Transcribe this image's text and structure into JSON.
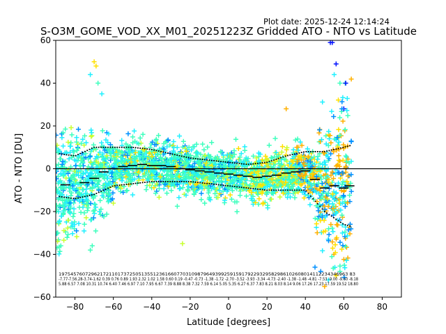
{
  "chart_data": {
    "type": "scatter",
    "plot_date": "Plot date: 2025-12-24 12:14:24",
    "title": "S-O3M_GOME_VOD_XX_M01_20251223Z Gridded ATO - NTO vs Latitude",
    "xlabel": "Latitude [degrees]",
    "ylabel": "ATO - NTO [DU]",
    "xlim": [
      -90,
      90
    ],
    "ylim": [
      -60,
      60
    ],
    "xticks": [
      -80,
      -60,
      -40,
      -20,
      0,
      20,
      40,
      60,
      80
    ],
    "yticks": [
      -60,
      -40,
      -20,
      0,
      20,
      40,
      60
    ],
    "zero_line": 0,
    "marker": "+",
    "colors": {
      "cyan_green": "#3dffbd",
      "aquamarine": "#20f0ff",
      "blue": "#0090ff",
      "yellow_green": "#c8ff30",
      "yellow": "#ffe000",
      "orange": "#ffb000",
      "dark_blue": "#0010ff",
      "mean_line": "#000000",
      "zero_line": "#000000"
    },
    "mean_by_band": [
      {
        "lat": -85,
        "mean": -7.5
      },
      {
        "lat": -75,
        "mean": -6.5
      },
      {
        "lat": -70,
        "mean": -4.5
      },
      {
        "lat": -65,
        "mean": -1.5
      },
      {
        "lat": -60,
        "mean": 0.0
      },
      {
        "lat": -55,
        "mean": 1.0
      },
      {
        "lat": -50,
        "mean": 1.5
      },
      {
        "lat": -45,
        "mean": 2.0
      },
      {
        "lat": -40,
        "mean": 1.5
      },
      {
        "lat": -35,
        "mean": 1.5
      },
      {
        "lat": -30,
        "mean": 1.0
      },
      {
        "lat": -25,
        "mean": 0.0
      },
      {
        "lat": -20,
        "mean": -0.5
      },
      {
        "lat": -15,
        "mean": -1.0
      },
      {
        "lat": -10,
        "mean": -1.5
      },
      {
        "lat": -5,
        "mean": -2.0
      },
      {
        "lat": 0,
        "mean": -2.5
      },
      {
        "lat": 5,
        "mean": -3.0
      },
      {
        "lat": 10,
        "mean": -3.5
      },
      {
        "lat": 15,
        "mean": -4.0
      },
      {
        "lat": 20,
        "mean": -3.5
      },
      {
        "lat": 25,
        "mean": -3.0
      },
      {
        "lat": 30,
        "mean": -2.0
      },
      {
        "lat": 35,
        "mean": -1.5
      },
      {
        "lat": 40,
        "mean": -1.0
      },
      {
        "lat": 45,
        "mean": -5.0
      },
      {
        "lat": 50,
        "mean": -9.0
      },
      {
        "lat": 55,
        "mean": -8.0
      },
      {
        "lat": 60,
        "mean": -9.0
      },
      {
        "lat": 63,
        "mean": -8.0
      }
    ],
    "spread_upper": [
      {
        "lat": -88,
        "value": 7
      },
      {
        "lat": -80,
        "value": 6
      },
      {
        "lat": -70,
        "value": 10
      },
      {
        "lat": -60,
        "value": 10
      },
      {
        "lat": -50,
        "value": 10
      },
      {
        "lat": -40,
        "value": 9
      },
      {
        "lat": -30,
        "value": 7
      },
      {
        "lat": -20,
        "value": 5
      },
      {
        "lat": -10,
        "value": 4
      },
      {
        "lat": 0,
        "value": 3
      },
      {
        "lat": 10,
        "value": 2
      },
      {
        "lat": 20,
        "value": 3
      },
      {
        "lat": 30,
        "value": 6
      },
      {
        "lat": 40,
        "value": 8
      },
      {
        "lat": 50,
        "value": 8
      },
      {
        "lat": 60,
        "value": 10
      },
      {
        "lat": 64,
        "value": 11
      }
    ],
    "spread_lower": [
      {
        "lat": -88,
        "value": -13
      },
      {
        "lat": -80,
        "value": -14
      },
      {
        "lat": -70,
        "value": -12
      },
      {
        "lat": -60,
        "value": -8
      },
      {
        "lat": -50,
        "value": -7
      },
      {
        "lat": -40,
        "value": -6
      },
      {
        "lat": -30,
        "value": -6
      },
      {
        "lat": -20,
        "value": -6
      },
      {
        "lat": -10,
        "value": -7
      },
      {
        "lat": 0,
        "value": -8
      },
      {
        "lat": 10,
        "value": -9
      },
      {
        "lat": 20,
        "value": -10
      },
      {
        "lat": 30,
        "value": -10
      },
      {
        "lat": 40,
        "value": -10
      },
      {
        "lat": 50,
        "value": -20
      },
      {
        "lat": 60,
        "value": -26
      },
      {
        "lat": 64,
        "value": -27
      }
    ],
    "band_stats": {
      "count_row": "19754576072962172110173725051355123616607703109879649399259159179229329582986102608014112234346963 83",
      "mean_row": "-7.77-7.56.28-3.74-1.62 0.39 0.76 0.89 1.93 2.32 1.02 1.58 0.60 0.19 -0.47 -0.73 -1.38 -1.72 -2.70 -3.52 -3.93 -3.34 -4.73 -2.40 -1.38 -1.48 -4.81 -7.53 -9.00 -9.60 -8.18",
      "std_row": "5.88 6.57 7.08 10.31 10.74 6.40 7.46 6.97 7.10 7.95 6.67 7.39 8.88 8.38 7.32 7.59 6.14 5.05 5.35 6.27 6.37 7.83 8.21 8.03 8.14 9.06 17.26 17.23 17.59 19.52 18.80"
    }
  }
}
